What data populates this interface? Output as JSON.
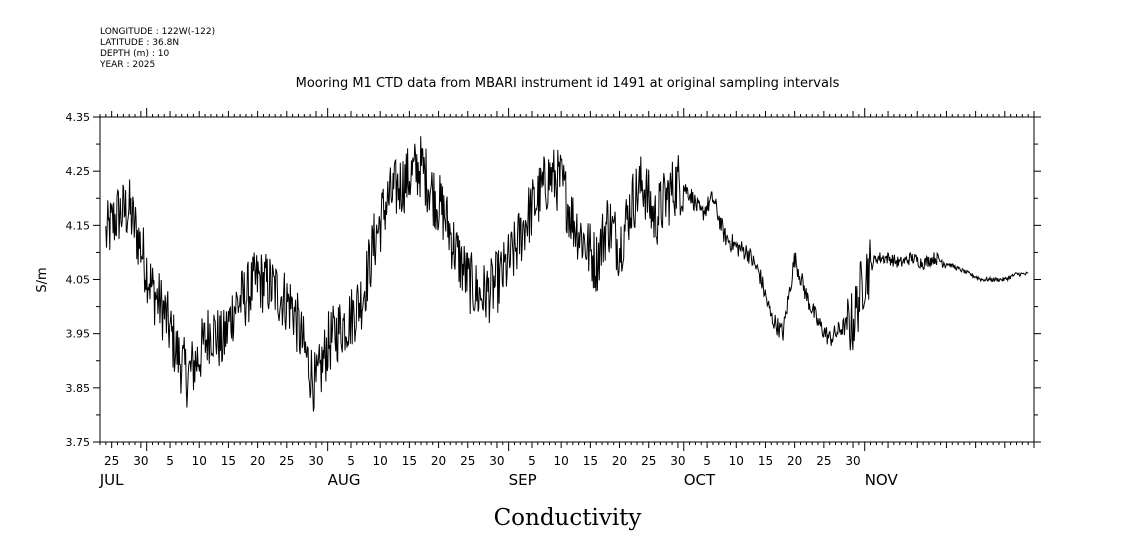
{
  "header": {
    "longitude": "LONGITUDE : 122W(-122)",
    "latitude": "LATITUDE : 36.8N",
    "depth": "DEPTH (m) : 10",
    "year": "YEAR : 2025"
  },
  "chart_data": {
    "type": "line",
    "title": "Mooring M1 CTD data from MBARI instrument id 1491 at original sampling intervals",
    "xlabel": "Conductivity",
    "ylabel": "S/m",
    "xlim": [
      "2025-06-23",
      "2025-11-30"
    ],
    "ylim": [
      3.75,
      4.35
    ],
    "yticks": [
      "3.75",
      "3.85",
      "3.95",
      "4.05",
      "4.15",
      "4.25",
      "4.35"
    ],
    "xticks": [
      "25",
      "30",
      "5",
      "10",
      "15",
      "20",
      "25",
      "30",
      "5",
      "10",
      "15",
      "20",
      "25",
      "30",
      "5",
      "10",
      "15",
      "20",
      "25",
      "30",
      "5",
      "10",
      "15",
      "20",
      "25",
      "30"
    ],
    "months": [
      "JUL",
      "AUG",
      "SEP",
      "OCT",
      "NOV"
    ],
    "grid": false,
    "series": [
      {
        "color": "#000000",
        "points": [
          [
            "2025-06-24",
            4.13
          ],
          [
            "2025-06-26",
            4.17
          ],
          [
            "2025-06-28",
            4.18
          ],
          [
            "2025-06-30",
            4.11
          ],
          [
            "2025-07-02",
            4.03
          ],
          [
            "2025-07-04",
            3.99
          ],
          [
            "2025-07-06",
            3.92
          ],
          [
            "2025-07-08",
            3.87
          ],
          [
            "2025-07-10",
            3.91
          ],
          [
            "2025-07-12",
            3.96
          ],
          [
            "2025-07-14",
            3.93
          ],
          [
            "2025-07-16",
            4.0
          ],
          [
            "2025-07-18",
            4.02
          ],
          [
            "2025-07-20",
            4.05
          ],
          [
            "2025-07-22",
            4.04
          ],
          [
            "2025-07-24",
            4.02
          ],
          [
            "2025-07-26",
            4.0
          ],
          [
            "2025-07-28",
            3.92
          ],
          [
            "2025-07-30",
            3.85
          ],
          [
            "2025-08-01",
            3.93
          ],
          [
            "2025-08-03",
            3.96
          ],
          [
            "2025-08-05",
            3.98
          ],
          [
            "2025-08-07",
            4.02
          ],
          [
            "2025-08-09",
            4.12
          ],
          [
            "2025-08-11",
            4.19
          ],
          [
            "2025-08-13",
            4.22
          ],
          [
            "2025-08-15",
            4.24
          ],
          [
            "2025-08-17",
            4.26
          ],
          [
            "2025-08-19",
            4.21
          ],
          [
            "2025-08-21",
            4.17
          ],
          [
            "2025-08-23",
            4.1
          ],
          [
            "2025-08-25",
            4.05
          ],
          [
            "2025-08-27",
            4.02
          ],
          [
            "2025-08-29",
            4.03
          ],
          [
            "2025-08-31",
            4.06
          ],
          [
            "2025-09-02",
            4.1
          ],
          [
            "2025-09-04",
            4.16
          ],
          [
            "2025-09-06",
            4.2
          ],
          [
            "2025-09-08",
            4.24
          ],
          [
            "2025-09-10",
            4.23
          ],
          [
            "2025-09-12",
            4.16
          ],
          [
            "2025-09-14",
            4.12
          ],
          [
            "2025-09-16",
            4.08
          ],
          [
            "2025-09-18",
            4.16
          ],
          [
            "2025-09-20",
            4.11
          ],
          [
            "2025-09-22",
            4.19
          ],
          [
            "2025-09-24",
            4.23
          ],
          [
            "2025-09-26",
            4.16
          ],
          [
            "2025-09-28",
            4.2
          ],
          [
            "2025-09-30",
            4.23
          ],
          [
            "2025-10-02",
            4.21
          ],
          [
            "2025-10-04",
            4.17
          ],
          [
            "2025-10-06",
            4.2
          ],
          [
            "2025-10-08",
            4.13
          ],
          [
            "2025-10-10",
            4.11
          ],
          [
            "2025-10-12",
            4.1
          ],
          [
            "2025-10-14",
            4.06
          ],
          [
            "2025-10-16",
            3.98
          ],
          [
            "2025-10-18",
            3.95
          ],
          [
            "2025-10-20",
            4.09
          ],
          [
            "2025-10-22",
            4.02
          ],
          [
            "2025-10-24",
            3.97
          ],
          [
            "2025-10-26",
            3.94
          ],
          [
            "2025-10-28",
            3.96
          ],
          [
            "2025-10-30",
            3.97
          ],
          [
            "2025-11-01",
            4.06
          ],
          [
            "2025-11-03",
            4.09
          ],
          [
            "2025-11-05",
            4.09
          ],
          [
            "2025-11-07",
            4.08
          ],
          [
            "2025-11-09",
            4.09
          ],
          [
            "2025-11-11",
            4.08
          ],
          [
            "2025-11-13",
            4.09
          ],
          [
            "2025-11-15",
            4.08
          ],
          [
            "2025-11-17",
            4.07
          ],
          [
            "2025-11-19",
            4.06
          ],
          [
            "2025-11-21",
            4.05
          ],
          [
            "2025-11-23",
            4.05
          ],
          [
            "2025-11-25",
            4.05
          ],
          [
            "2025-11-27",
            4.06
          ],
          [
            "2025-11-29",
            4.06
          ]
        ]
      }
    ]
  }
}
